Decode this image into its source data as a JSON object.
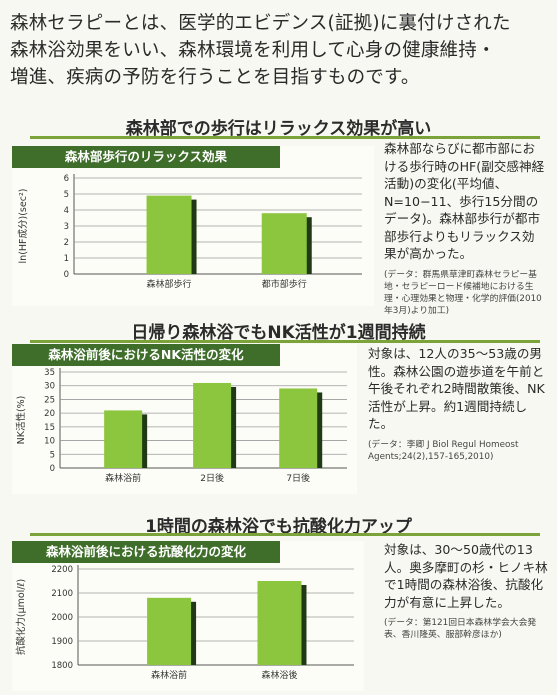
{
  "intro": {
    "line1": "森林セラピーとは、医学的エビデンス(証拠)に裏付けされた",
    "line2": "森林浴効果をいい、森林環境を利用して心身の健康維持・",
    "line3": "増進、疾病の予防を行うことを目指すものです。"
  },
  "sections": [
    {
      "heading": "森林部での歩行はリラックス効果が高い",
      "text": "森林部ならびに都市部における歩行時のHF(副交感神経活動)の変化(平均値、N=10−11、歩行15分間のデータ)。森林部歩行が都市部歩行よりもリラックス効果が高かった。",
      "note": "(データ：群馬県草津町森林セラピー基地・セラピーロード候補地における生理・心理効果と物理・化学的評価(2010年3月)より加工)"
    },
    {
      "heading": "日帰り森林浴でもNK活性が1週間持続",
      "text": "対象は、12人の35〜53歳の男性。森林公園の遊歩道を午前と午後それぞれ2時間散策後、NK活性が上昇。約1週間持続した。",
      "note": "(データ：李卿 J Biol Regul Homeost Agents;24(2),157-165,2010)"
    },
    {
      "heading": "1時間の森林浴でも抗酸化力アップ",
      "text": "対象は、30〜50歳代の13人。奥多摩町の杉・ヒノキ林で1時間の森林浴後、抗酸化力が有意に上昇した。",
      "note": "(データ：第121回日本森林学会大会発表、香川隆英、服部幹彦ほか)"
    }
  ],
  "chart_data": [
    {
      "type": "bar",
      "title": "森林部歩行のリラックス効果",
      "ylabel": "ln(HF成分)(sec²)",
      "categories": [
        "森林部歩行",
        "都市部歩行"
      ],
      "values": [
        4.9,
        3.8
      ],
      "ylim": [
        0,
        6
      ],
      "yticks": [
        0,
        1,
        2,
        3,
        4,
        5,
        6
      ],
      "grid": true,
      "bar_color": "#8cc63f",
      "shadow_color": "#1f3a14"
    },
    {
      "type": "bar",
      "title": "森林浴前後におけるNK活性の変化",
      "ylabel": "NK活性(%)",
      "categories": [
        "森林浴前",
        "2日後",
        "7日後"
      ],
      "values": [
        21,
        31,
        29
      ],
      "ylim": [
        0,
        35
      ],
      "yticks": [
        0,
        5,
        10,
        15,
        20,
        25,
        30,
        35
      ],
      "grid": true,
      "bar_color": "#8cc63f",
      "shadow_color": "#1f3a14"
    },
    {
      "type": "bar",
      "title": "森林浴前後における抗酸化力の変化",
      "ylabel": "抗酸化力(μmol/ℓ)",
      "categories": [
        "森林浴前",
        "森林浴後"
      ],
      "values": [
        2080,
        2150
      ],
      "ylim": [
        1800,
        2200
      ],
      "yticks": [
        1800,
        1900,
        2000,
        2100,
        2200
      ],
      "grid": true,
      "bar_color": "#8cc63f",
      "shadow_color": "#1f3a14"
    }
  ]
}
